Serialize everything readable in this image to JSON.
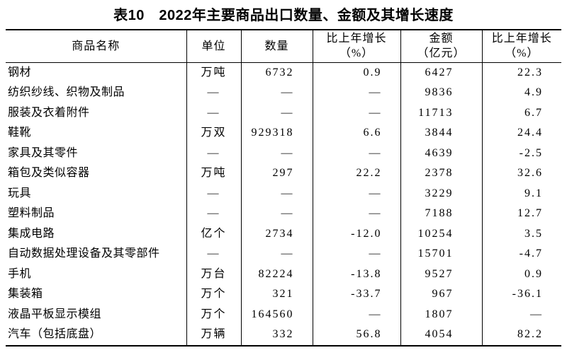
{
  "title": "表10　2022年主要商品出口数量、金额及其增长速度",
  "table": {
    "headers": [
      {
        "label": "商品名称",
        "sub": ""
      },
      {
        "label": "单位",
        "sub": ""
      },
      {
        "label": "数量",
        "sub": ""
      },
      {
        "label": "比上年增长",
        "sub": "（%）"
      },
      {
        "label": "金额",
        "sub": "（亿元）"
      },
      {
        "label": "比上年增长",
        "sub": "（%）"
      }
    ],
    "columns_semantic": [
      "commodity-name",
      "unit",
      "quantity",
      "quantity-growth-pct",
      "amount-100m-yuan",
      "amount-growth-pct"
    ],
    "rows": [
      [
        "钢材",
        "万吨",
        "6732",
        "0.9",
        "6427",
        "22.3"
      ],
      [
        "纺织纱线、织物及制品",
        "—",
        "—",
        "—",
        "9836",
        "4.9"
      ],
      [
        "服装及衣着附件",
        "—",
        "—",
        "—",
        "11713",
        "6.7"
      ],
      [
        "鞋靴",
        "万双",
        "929318",
        "6.6",
        "3844",
        "24.4"
      ],
      [
        "家具及其零件",
        "—",
        "—",
        "—",
        "4639",
        "-2.5"
      ],
      [
        "箱包及类似容器",
        "万吨",
        "297",
        "22.2",
        "2378",
        "32.6"
      ],
      [
        "玩具",
        "—",
        "—",
        "—",
        "3229",
        "9.1"
      ],
      [
        "塑料制品",
        "—",
        "—",
        "—",
        "7188",
        "12.7"
      ],
      [
        "集成电路",
        "亿个",
        "2734",
        "-12.0",
        "10254",
        "3.5"
      ],
      [
        "自动数据处理设备及其零部件",
        "—",
        "—",
        "—",
        "15701",
        "-4.7"
      ],
      [
        "手机",
        "万台",
        "82224",
        "-13.8",
        "9527",
        "0.9"
      ],
      [
        "集装箱",
        "万个",
        "321",
        "-33.7",
        "967",
        "-36.1"
      ],
      [
        "液晶平板显示模组",
        "万个",
        "164560",
        "—",
        "1807",
        "—"
      ],
      [
        "汽车（包括底盘）",
        "万辆",
        "332",
        "56.8",
        "4054",
        "82.2"
      ]
    ]
  }
}
